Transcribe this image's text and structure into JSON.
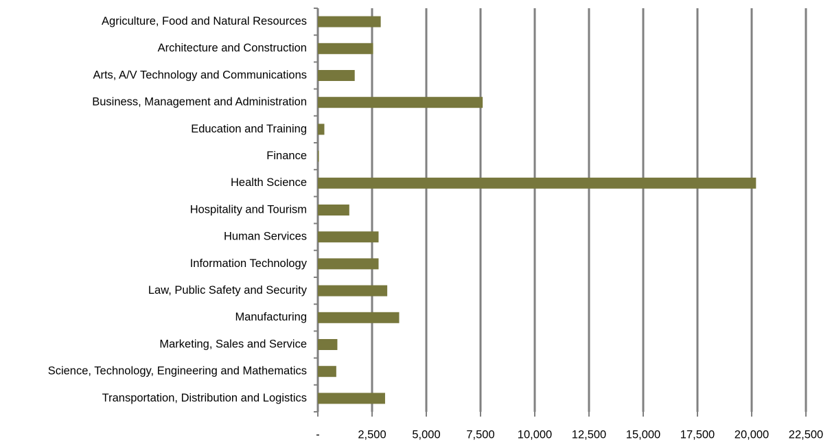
{
  "chart_data": {
    "type": "hbar",
    "categories": [
      "Agriculture, Food and Natural Resources",
      "Architecture and Construction",
      "Arts, A/V Technology and Communications",
      "Business, Management and Administration",
      "Education and Training",
      "Finance",
      "Health Science",
      "Hospitality and Tourism",
      "Human Services",
      "Information Technology",
      "Law, Public Safety and Security",
      "Manufacturing",
      "Marketing, Sales and Service",
      "Science, Technology, Engineering and Mathematics",
      "Transportation, Distribution and Logistics"
    ],
    "values": [
      2900,
      2550,
      1700,
      7600,
      300,
      50,
      20200,
      1450,
      2800,
      2800,
      3200,
      3750,
      900,
      850,
      3100
    ],
    "color": "#77773c",
    "xlim": [
      0,
      22500
    ],
    "xticks": [
      {
        "value": 0,
        "label": "-"
      },
      {
        "value": 2500,
        "label": "2,500"
      },
      {
        "value": 5000,
        "label": "5,000"
      },
      {
        "value": 7500,
        "label": "7,500"
      },
      {
        "value": 10000,
        "label": "10,000"
      },
      {
        "value": 12500,
        "label": "12,500"
      },
      {
        "value": 15000,
        "label": "15,000"
      },
      {
        "value": 17500,
        "label": "17,500"
      },
      {
        "value": 20000,
        "label": "20,000"
      },
      {
        "value": 22500,
        "label": "22,500"
      }
    ],
    "grid": true
  }
}
